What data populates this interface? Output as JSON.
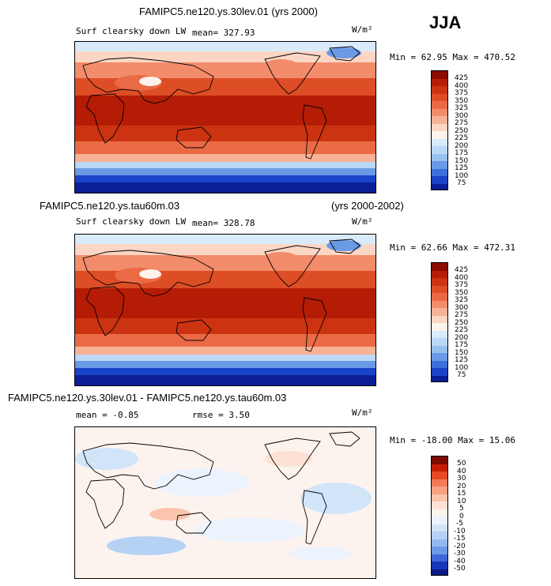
{
  "season": "JJA",
  "units": "W/m²",
  "panels": [
    {
      "title": "FAMIPC5.ne120.ys.30lev.01 (yrs 2000)",
      "variable": "Surf clearsky down LW",
      "mean": "mean= 327.93",
      "stats": "Min =  62.95 Max = 470.52",
      "levels": [
        "425",
        "400",
        "375",
        "350",
        "325",
        "300",
        "275",
        "250",
        "225",
        "200",
        "175",
        "150",
        "125",
        "100",
        "75"
      ]
    },
    {
      "title_left": "FAMIPC5.ne120.ys.tau60m.03",
      "title_right": "(yrs 2000-2002)",
      "variable": "Surf clearsky down LW",
      "mean": "mean= 328.78",
      "stats": "Min =  62.66 Max = 472.31",
      "levels": [
        "425",
        "400",
        "375",
        "350",
        "325",
        "300",
        "275",
        "250",
        "225",
        "200",
        "175",
        "150",
        "125",
        "100",
        "75"
      ]
    },
    {
      "title": "FAMIPC5.ne120.ys.30lev.01 - FAMIPC5.ne120.ys.tau60m.03",
      "mean": "mean =  -0.85",
      "rmse": "rmse =   3.50",
      "stats": "Min = -18.00 Max =  15.06",
      "levels": [
        "50",
        "40",
        "30",
        "20",
        "15",
        "10",
        "5",
        "0",
        "-5",
        "-10",
        "-15",
        "-20",
        "-30",
        "-40",
        "-50"
      ]
    }
  ],
  "colors": {
    "abs": [
      "#8c0a00",
      "#b51c05",
      "#cc3311",
      "#dd4d26",
      "#ea6a45",
      "#f28c6a",
      "#f7b296",
      "#fcd6c4",
      "#fdf3ea",
      "#d9ebfb",
      "#bcd8f6",
      "#98c0ef",
      "#6a9ae6",
      "#3f6fda",
      "#1a44c8",
      "#0b1e96"
    ],
    "diff": [
      "#7d0b00",
      "#c51d07",
      "#e44a26",
      "#f27a56",
      "#f8a283",
      "#fbc4ac",
      "#fde2d4",
      "#fdf3ee",
      "#ecf3fc",
      "#d2e4f8",
      "#b5d2f4",
      "#93b9ef",
      "#6f99e6",
      "#3f68d6",
      "#1637b6",
      "#0a1a86"
    ]
  }
}
